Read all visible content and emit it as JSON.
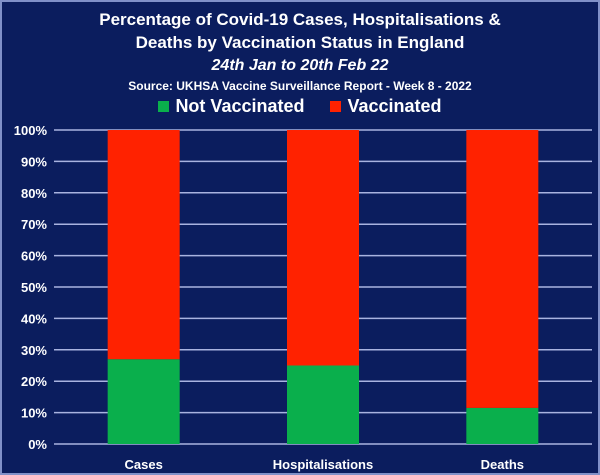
{
  "chart_data": {
    "type": "bar",
    "stacked": true,
    "title": "Percentage of Covid-19 Cases, Hospitalisations & Deaths by Vaccination Status in England",
    "title_line1": "Percentage of Covid-19 Cases, Hospitalisations &",
    "title_line2": "Deaths by Vaccination Status in England",
    "subtitle": "24th Jan to 20th Feb 22",
    "source": "Source: UKHSA Vaccine Surveillance Report - Week 8 - 2022",
    "xlabel": "",
    "ylabel": "",
    "ylim": [
      0,
      100
    ],
    "yticks": [
      "0%",
      "10%",
      "20%",
      "30%",
      "40%",
      "50%",
      "60%",
      "70%",
      "80%",
      "90%",
      "100%"
    ],
    "grid": true,
    "legend_position": "top-center",
    "categories": [
      "Cases",
      "Hospitalisations",
      "Deaths"
    ],
    "series": [
      {
        "name": "Not Vaccinated",
        "color": "#0aaf4c",
        "values": [
          27,
          25,
          11.5
        ]
      },
      {
        "name": "Vaccinated",
        "color": "#ff2200",
        "values": [
          73,
          75,
          88.5
        ]
      }
    ]
  },
  "colors": {
    "background": "#0b1d5e",
    "grid": "#a9b3e0",
    "text": "#ffffff"
  }
}
